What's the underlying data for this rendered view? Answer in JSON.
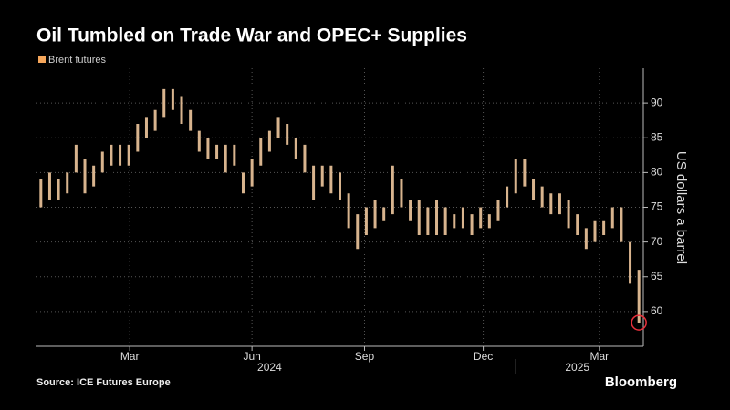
{
  "chart_data": {
    "type": "range",
    "title": "Oil Tumbled on Trade War and OPEC+ Supplies",
    "y_label": "US dollars a barrel",
    "source": "Source: ICE Futures Europe",
    "brand": "Bloomberg",
    "legend_color": "#f5a65b",
    "series": [
      {
        "name": "Brent futures",
        "color": "#d8b48e",
        "high": [
          79,
          80,
          79,
          80,
          84,
          82,
          81,
          83,
          84,
          84,
          84,
          87,
          88,
          89,
          92,
          92,
          91,
          89,
          86,
          85,
          84,
          84,
          84,
          80,
          82,
          85,
          86,
          88,
          87,
          85,
          84,
          81,
          81,
          81,
          80,
          77,
          74,
          75,
          76,
          75,
          81,
          79,
          76,
          76,
          75,
          76,
          75,
          74,
          75,
          74,
          75,
          74,
          76,
          78,
          82,
          82,
          79,
          78,
          77,
          77,
          76,
          74,
          72,
          73,
          73,
          75,
          75,
          70,
          66
        ],
        "low": [
          75,
          76,
          76,
          77,
          80,
          77,
          78,
          80,
          81,
          81,
          81,
          83,
          85,
          86,
          88,
          89,
          87,
          86,
          83,
          82,
          82,
          80,
          81,
          77,
          78,
          81,
          83,
          85,
          84,
          82,
          80,
          76,
          78,
          77,
          76,
          72,
          69,
          71,
          72,
          73,
          74,
          75,
          73,
          71,
          71,
          71,
          71,
          72,
          72,
          71,
          72,
          72,
          73,
          75,
          77,
          78,
          76,
          75,
          74,
          74,
          72,
          71,
          69,
          70,
          71,
          72,
          70,
          64,
          58.4
        ]
      }
    ],
    "x": [
      0,
      1,
      2,
      3,
      4,
      5,
      6,
      7,
      8,
      9,
      10,
      11,
      12,
      13,
      14,
      15,
      16,
      17,
      18,
      19,
      20,
      21,
      22,
      23,
      24,
      25,
      26,
      27,
      28,
      29,
      30,
      31,
      32,
      33,
      34,
      35,
      36,
      37,
      38,
      39,
      40,
      41,
      42,
      43,
      44,
      45,
      46,
      47,
      48,
      49,
      50,
      51,
      52,
      53,
      54,
      55,
      56,
      57,
      58,
      59,
      60,
      61,
      62,
      63,
      64,
      65,
      66,
      67,
      68
    ],
    "xlim": [
      -0.5,
      68.5
    ],
    "xticks": [
      {
        "value": 10.1,
        "label": "Mar"
      },
      {
        "value": 24,
        "label": "Jun"
      },
      {
        "value": 36.8,
        "label": "Sep"
      },
      {
        "value": 50.3,
        "label": "Dec"
      },
      {
        "value": 63.5,
        "label": "Mar"
      }
    ],
    "year_labels": [
      {
        "value": 26,
        "label": "2024"
      },
      {
        "value": 61,
        "label": "2025"
      }
    ],
    "year_break": 54,
    "ylim": [
      55,
      95
    ],
    "yticks": [
      60,
      65,
      70,
      75,
      80,
      85,
      90
    ],
    "grid": true,
    "highlight_color": "#e8303a"
  }
}
